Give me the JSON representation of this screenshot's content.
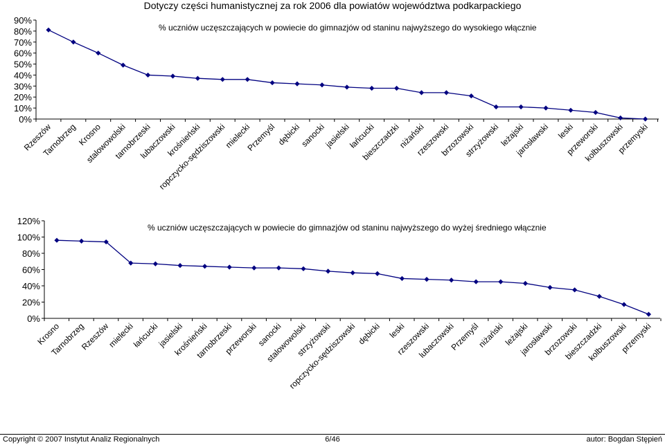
{
  "page_title": "Dotyczy części humanistycznej za rok 2006 dla powiatów województwa podkarpackiego",
  "footer": {
    "copyright": "Copyright © 2007 Instytut Analiz Regionalnych",
    "page": "6/46",
    "author": "autor: Bogdan Stępień"
  },
  "colors": {
    "line": "#000080",
    "axis": "#000000"
  },
  "chart_data": [
    {
      "type": "line",
      "title": "% uczniów uczęszczających w powiecie do gimnazjów od staninu najwyższego do wysokiego włącznie",
      "categories": [
        "Rzeszów",
        "Tarnobrzeg",
        "Krosno",
        "stalowowolski",
        "tarnobrzeski",
        "lubaczowski",
        "krośnieński",
        "ropczycko-sędziszowski",
        "mielecki",
        "Przemyśl",
        "dębicki",
        "sanocki",
        "jasielski",
        "łańcucki",
        "bieszczadzki",
        "niżański",
        "rzeszowski",
        "brzozowski",
        "strzyżowski",
        "leżajski",
        "jarosławski",
        "leski",
        "przeworski",
        "kolbuszowski",
        "przemyski"
      ],
      "values": [
        81,
        70,
        60,
        49,
        40,
        39,
        37,
        36,
        36,
        33,
        32,
        31,
        29,
        28,
        28,
        24,
        24,
        21,
        11,
        11,
        10,
        8,
        6,
        1,
        0
      ],
      "y_ticks": [
        "0%",
        "10%",
        "20%",
        "30%",
        "40%",
        "50%",
        "60%",
        "70%",
        "80%",
        "90%"
      ],
      "ylim": [
        0,
        90
      ],
      "grid": false
    },
    {
      "type": "line",
      "title": "% uczniów uczęszczających w powiecie do gimnazjów od staninu najwyższego do wyżej średniego włącznie",
      "categories": [
        "Krosno",
        "Tarnobrzeg",
        "Rzeszów",
        "mielecki",
        "łańcucki",
        "jasielski",
        "krośnieński",
        "tarnobrzeski",
        "przeworski",
        "sanocki",
        "stalowowolski",
        "strzyżowski",
        "ropczycko-sędziszowski",
        "dębicki",
        "leski",
        "rzeszowski",
        "lubaczowski",
        "Przemyśl",
        "niżański",
        "leżajski",
        "jarosławski",
        "brzozowski",
        "bieszczadzki",
        "kolbuszowski",
        "przemyski"
      ],
      "values": [
        96,
        95,
        94,
        68,
        67,
        65,
        64,
        63,
        62,
        62,
        61,
        58,
        56,
        55,
        49,
        48,
        47,
        45,
        45,
        43,
        38,
        35,
        27,
        17,
        5
      ],
      "y_ticks": [
        "0%",
        "20%",
        "40%",
        "60%",
        "80%",
        "100%",
        "120%"
      ],
      "ylim": [
        0,
        120
      ],
      "grid": false
    }
  ]
}
